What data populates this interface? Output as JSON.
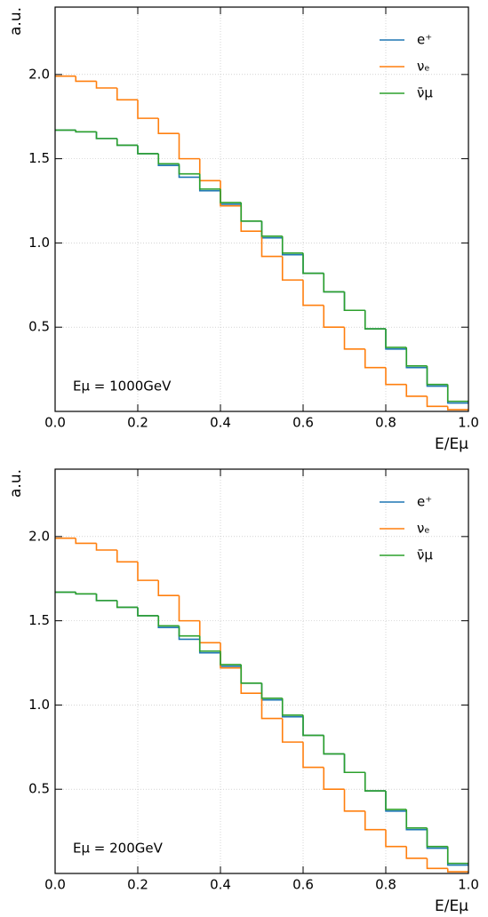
{
  "chart_data": [
    {
      "type": "histogram",
      "annotation": "Eμ = 1000GeV",
      "xlabel": "E/Eμ",
      "ylabel": "a.u.",
      "bins": [
        0,
        0.05,
        0.1,
        0.15,
        0.2,
        0.25,
        0.3,
        0.35,
        0.4,
        0.45,
        0.5,
        0.55,
        0.6,
        0.65,
        0.7,
        0.75,
        0.8,
        0.85,
        0.9,
        0.95,
        1.0
      ],
      "series": [
        {
          "name": "e⁺",
          "color": "#1f77b4",
          "values": [
            1.67,
            1.66,
            1.62,
            1.58,
            1.53,
            1.46,
            1.39,
            1.31,
            1.23,
            1.13,
            1.03,
            0.93,
            0.82,
            0.71,
            0.6,
            0.49,
            0.37,
            0.26,
            0.15,
            0.05
          ]
        },
        {
          "name": "νₑ",
          "color": "#ff7f0e",
          "values": [
            1.99,
            1.96,
            1.92,
            1.85,
            1.74,
            1.65,
            1.5,
            1.37,
            1.22,
            1.07,
            0.92,
            0.78,
            0.63,
            0.5,
            0.37,
            0.26,
            0.16,
            0.09,
            0.03,
            0.01
          ]
        },
        {
          "name": "ν̄μ",
          "color": "#2ca02c",
          "values": [
            1.67,
            1.66,
            1.62,
            1.58,
            1.53,
            1.47,
            1.41,
            1.32,
            1.24,
            1.13,
            1.04,
            0.94,
            0.82,
            0.71,
            0.6,
            0.49,
            0.38,
            0.27,
            0.16,
            0.06
          ]
        }
      ],
      "xlim": [
        0,
        1.0
      ],
      "ylim": [
        0,
        2.4
      ],
      "xticks": [
        {
          "value": 0,
          "label": "0.0"
        },
        0.2,
        0.4,
        0.6,
        0.8,
        {
          "value": 1.0,
          "label": "1.0"
        }
      ],
      "yticks": [
        0.5,
        {
          "value": 1.0,
          "label": "1.0"
        },
        1.5,
        {
          "value": 2.0,
          "label": "2.0"
        }
      ],
      "grid": true,
      "legend": "upper right"
    },
    {
      "type": "histogram",
      "annotation": "Eμ = 200GeV",
      "xlabel": "E/Eμ",
      "ylabel": "a.u.",
      "bins": [
        0,
        0.05,
        0.1,
        0.15,
        0.2,
        0.25,
        0.3,
        0.35,
        0.4,
        0.45,
        0.5,
        0.55,
        0.6,
        0.65,
        0.7,
        0.75,
        0.8,
        0.85,
        0.9,
        0.95,
        1.0
      ],
      "series": [
        {
          "name": "e⁺",
          "color": "#1f77b4",
          "values": [
            1.67,
            1.66,
            1.62,
            1.58,
            1.53,
            1.46,
            1.39,
            1.31,
            1.23,
            1.13,
            1.03,
            0.93,
            0.82,
            0.71,
            0.6,
            0.49,
            0.37,
            0.26,
            0.15,
            0.05
          ]
        },
        {
          "name": "νₑ",
          "color": "#ff7f0e",
          "values": [
            1.99,
            1.96,
            1.92,
            1.85,
            1.74,
            1.65,
            1.5,
            1.37,
            1.22,
            1.07,
            0.92,
            0.78,
            0.63,
            0.5,
            0.37,
            0.26,
            0.16,
            0.09,
            0.03,
            0.01
          ]
        },
        {
          "name": "ν̄μ",
          "color": "#2ca02c",
          "values": [
            1.67,
            1.66,
            1.62,
            1.58,
            1.53,
            1.47,
            1.41,
            1.32,
            1.24,
            1.13,
            1.04,
            0.94,
            0.82,
            0.71,
            0.6,
            0.49,
            0.38,
            0.27,
            0.16,
            0.06
          ]
        }
      ],
      "xlim": [
        0,
        1.0
      ],
      "ylim": [
        0,
        2.4
      ],
      "xticks": [
        {
          "value": 0,
          "label": "0.0"
        },
        0.2,
        0.4,
        0.6,
        0.8,
        {
          "value": 1.0,
          "label": "1.0"
        }
      ],
      "yticks": [
        0.5,
        {
          "value": 1.0,
          "label": "1.0"
        },
        1.5,
        {
          "value": 2.0,
          "label": "2.0"
        }
      ],
      "grid": true,
      "legend": "upper right"
    }
  ]
}
